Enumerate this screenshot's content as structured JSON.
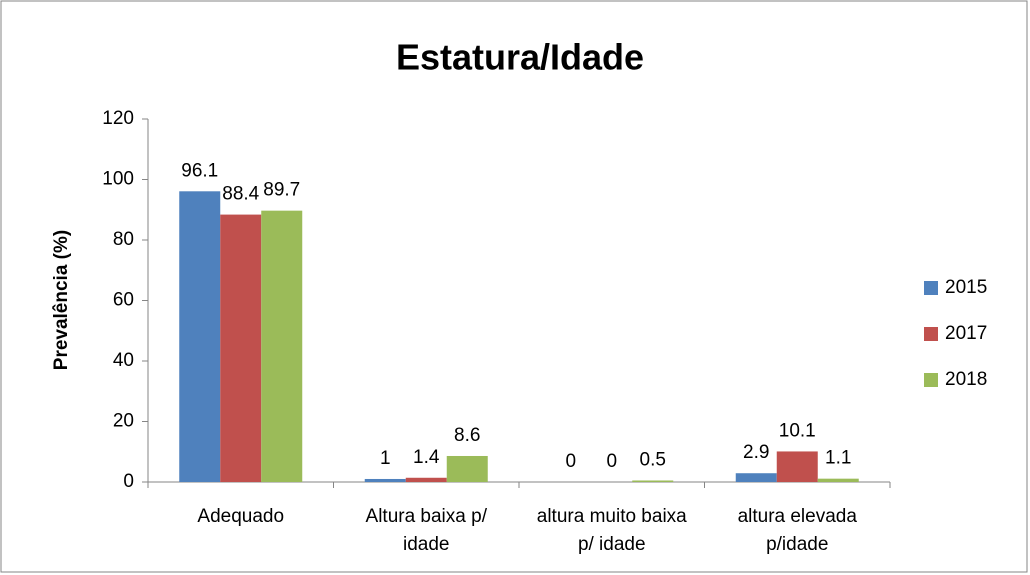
{
  "chart_data": {
    "type": "bar",
    "title": "Estatura/Idade",
    "y_label": "Prevalência (%)",
    "categories": [
      "Adequado",
      "Altura baixa p/ idade",
      "altura muito baixa p/ idade",
      "altura elevada p/idade"
    ],
    "series": [
      {
        "name": "2015",
        "color": "#4f81bd",
        "values": [
          96.1,
          1,
          0,
          2.9
        ]
      },
      {
        "name": "2017",
        "color": "#c0504d",
        "values": [
          88.4,
          1.4,
          0,
          10.1
        ]
      },
      {
        "name": "2018",
        "color": "#9bbb59",
        "values": [
          89.7,
          8.6,
          0.5,
          1.1
        ]
      }
    ],
    "ylim": [
      0,
      120
    ],
    "yticks": [
      0,
      20,
      40,
      60,
      80,
      100,
      120
    ],
    "grid": false,
    "legend": "right"
  }
}
